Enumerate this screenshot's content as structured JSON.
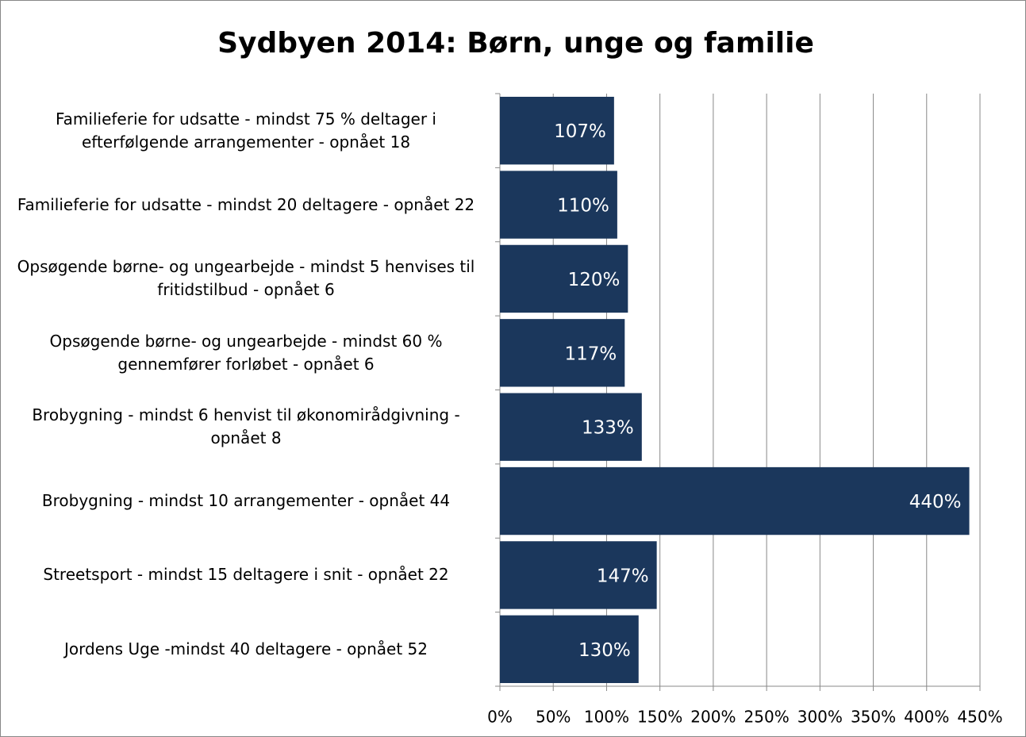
{
  "chart_data": {
    "type": "bar",
    "orientation": "horizontal",
    "title": "Sydbyen 2014: Børn, unge og familie",
    "categories": [
      "Familieferie for udsatte - mindst 75 % deltager i efterfølgende arrangementer - opnået 18",
      "Familieferie for udsatte - mindst 20 deltagere - opnået 22",
      "Opsøgende børne- og ungearbejde - mindst 5 henvises til fritidstilbud - opnået 6",
      "Opsøgende børne- og ungearbejde - mindst 60 % gennemfører forløbet - opnået 6",
      "Brobygning - mindst 6 henvist til økonomirådgivning - opnået 8",
      "Brobygning - mindst 10 arrangementer - opnået 44",
      "Streetsport - mindst 15 deltagere i snit - opnået 22",
      "Jordens Uge -mindst 40 deltagere - opnået 52"
    ],
    "values": [
      107,
      110,
      120,
      117,
      133,
      440,
      147,
      130
    ],
    "value_labels": [
      "107%",
      "110%",
      "120%",
      "117%",
      "133%",
      "440%",
      "147%",
      "130%"
    ],
    "color": "#1b375c",
    "xlim": [
      0,
      450
    ],
    "xticks": [
      {
        "value": 0,
        "label": "0%"
      },
      {
        "value": 50,
        "label": "50%"
      },
      {
        "value": 100,
        "label": "100%"
      },
      {
        "value": 150,
        "label": "150%"
      },
      {
        "value": 200,
        "label": "200%"
      },
      {
        "value": 250,
        "label": "250%"
      },
      {
        "value": 300,
        "label": "300%"
      },
      {
        "value": 350,
        "label": "350%"
      },
      {
        "value": 400,
        "label": "400%"
      },
      {
        "value": 450,
        "label": "450%"
      }
    ],
    "grid": true
  }
}
